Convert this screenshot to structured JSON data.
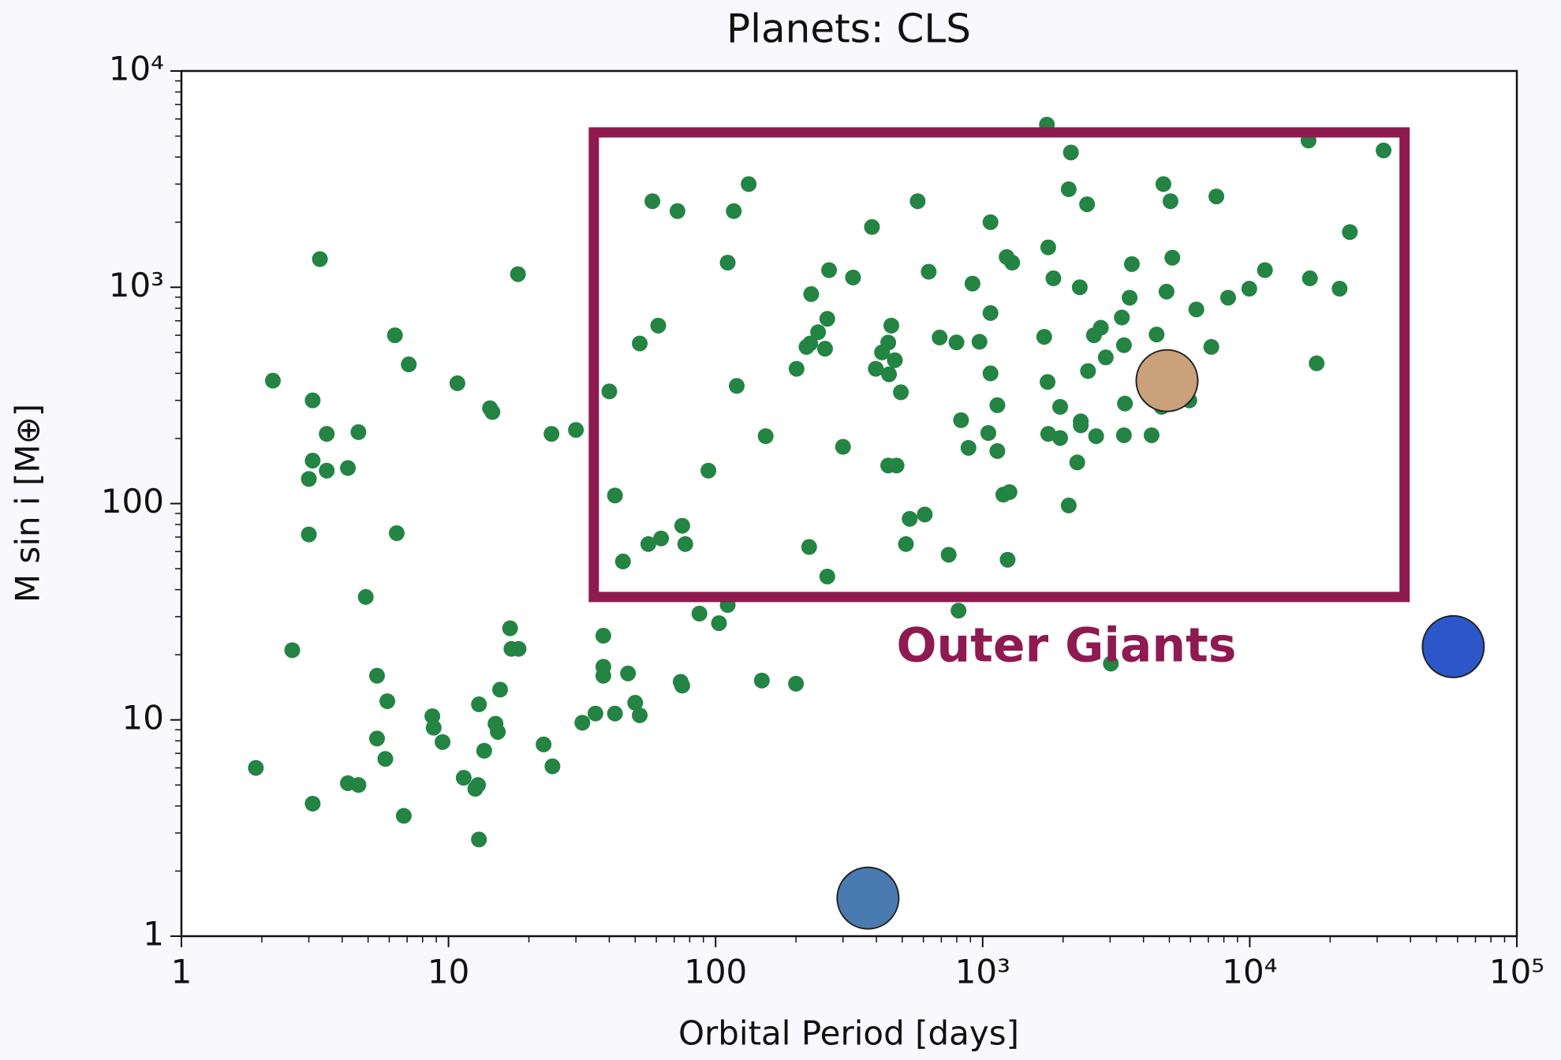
{
  "chart_data": {
    "type": "scatter",
    "title": "Planets: CLS",
    "xlabel": "Orbital Period [days]",
    "ylabel": "M sin i [M⊕]",
    "xscale": "log",
    "yscale": "log",
    "minor_ticks": true,
    "xlim": [
      1,
      100000
    ],
    "ylim": [
      1,
      10000
    ],
    "xticks": [
      1,
      10,
      100,
      {
        "value": 1000,
        "label": "10³"
      },
      {
        "value": 10000,
        "label": "10⁴"
      },
      {
        "value": 100000,
        "label": "10⁵"
      }
    ],
    "yticks": [
      1,
      10,
      100,
      {
        "value": 1000,
        "label": "10³"
      },
      {
        "value": 10000,
        "label": "10⁴"
      }
    ],
    "series": [
      {
        "color": "#238443",
        "x": [
          1.9,
          2.2,
          2.6,
          3.1,
          3.1,
          3.0,
          3.0,
          3.1,
          3.3,
          3.5,
          3.5,
          4.2,
          4.6,
          4.2,
          4.6,
          4.9,
          6.3,
          6.4,
          7.1,
          5.4,
          5.9,
          5.4,
          5.8,
          6.8,
          8.7,
          8.8,
          9.5,
          10.8,
          11.4,
          12.6,
          12.9,
          13,
          13,
          13.6,
          14.3,
          14.6,
          15,
          15.3,
          15.6,
          17,
          17.2,
          18.3,
          18.2,
          22.7,
          24.5,
          24.3,
          30,
          31.7,
          35.5,
          38,
          38,
          38,
          40,
          42,
          42,
          45,
          47,
          50,
          52,
          52,
          56,
          58,
          61,
          62.5,
          72,
          75,
          77,
          74,
          75,
          87,
          94,
          103,
          111,
          111,
          117,
          120,
          133,
          149,
          154,
          200,
          201,
          219,
          226,
          224,
          228,
          242,
          257,
          262,
          266,
          262,
          300,
          327,
          385,
          398,
          420,
          443,
          446,
          455,
          469,
          443,
          476,
          494,
          533,
          516,
          571,
          607,
          628,
          690,
          746,
          798,
          812,
          830,
          885,
          916,
          973,
          1050,
          1070,
          1070,
          1070,
          1135,
          1135,
          1195,
          1260,
          1230,
          1290,
          1240,
          1700,
          1750,
          1760,
          1760,
          1840,
          1740,
          1950,
          1950,
          2140,
          2100,
          2100,
          2310,
          2260,
          2330,
          2330,
          2460,
          2480,
          2610,
          2660,
          2770,
          2890,
          3020,
          3320,
          3380,
          3380,
          3410,
          3550,
          3620,
          4290,
          4480,
          4680,
          4750,
          4880,
          5050,
          5130,
          5940,
          6310,
          7180,
          7500,
          8300,
          9960,
          11400,
          16600,
          16800,
          17800,
          21700,
          23700,
          31700
        ],
        "values": [
          6.0,
          370,
          21,
          300,
          158,
          130,
          72,
          4.1,
          1350,
          210,
          142,
          146,
          214,
          5.1,
          5.0,
          37,
          600,
          73,
          440,
          16,
          12.2,
          8.2,
          6.6,
          3.6,
          10.4,
          9.2,
          7.9,
          360,
          5.4,
          4.8,
          5.0,
          2.8,
          11.8,
          7.2,
          276,
          265,
          9.6,
          8.8,
          13.8,
          26.5,
          21.3,
          21.3,
          1150,
          7.7,
          6.1,
          210,
          219,
          9.7,
          10.7,
          24.5,
          17.6,
          16.0,
          330,
          109,
          10.7,
          54,
          16.4,
          12,
          10.5,
          550,
          65,
          2500,
          665,
          69,
          2250,
          79,
          65,
          15,
          14.4,
          31,
          142,
          28,
          34,
          1300,
          2250,
          350,
          3000,
          15.2,
          205,
          14.7,
          420,
          530,
          550,
          63,
          930,
          620,
          520,
          715,
          1200,
          46,
          183,
          1110,
          1900,
          420,
          500,
          555,
          396,
          665,
          460,
          150,
          150,
          327,
          85,
          65,
          2500,
          89,
          1180,
          586,
          58,
          556,
          32,
          243,
          181,
          1040,
          560,
          212,
          2000,
          760,
          400,
          285,
          175,
          110,
          113,
          1380,
          1300,
          55,
          590,
          365,
          1530,
          210,
          1100,
          5650,
          280,
          201,
          4200,
          2840,
          98,
          1000,
          155,
          240,
          230,
          2420,
          410,
          600,
          205,
          650,
          474,
          18.2,
          725,
          540,
          207,
          290,
          895,
          1280,
          207,
          605,
          280,
          3000,
          955,
          2500,
          1370,
          300,
          790,
          530,
          2630,
          895,
          985,
          1200,
          4770,
          1100,
          445,
          985,
          1800,
          4290
        ]
      },
      {
        "colors": [
          "#4a7bb0",
          "#c9a27c",
          "#2d56c8"
        ],
        "x": [
          372,
          4900,
          57800
        ],
        "values": [
          1.5,
          370,
          21.8
        ]
      }
    ],
    "region": {
      "xlim": [
        35,
        38000
      ],
      "ylim": [
        37,
        5200
      ],
      "color": "#8e1a50",
      "label": "Outer Giants"
    }
  }
}
